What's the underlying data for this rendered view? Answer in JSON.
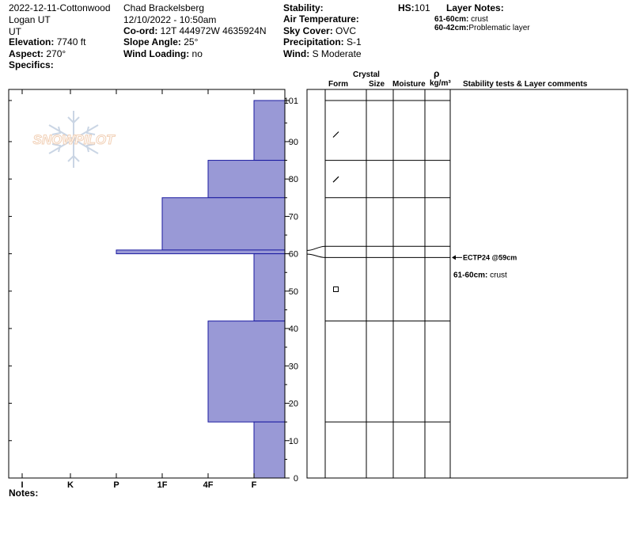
{
  "header": {
    "col1": [
      "2022-12-11-Cottonwood",
      "Logan UT",
      "UT"
    ],
    "elevation_label": "Elevation:",
    "elevation_value": "7740 ft",
    "aspect_label": "Aspect:",
    "aspect_value": "270°",
    "specifics_label": "Specifics:",
    "observer": "Chad Brackelsberg",
    "datetime": "12/10/2022 - 10:50am",
    "coord_label": "Co-ord:",
    "coord_value": "12T 444972W 4635924N",
    "slope_label": "Slope Angle:",
    "slope_value": "25°",
    "wind_loading_label": "Wind Loading:",
    "wind_loading_value": "no",
    "stability_label": "Stability:",
    "air_temp_label": "Air Temperature:",
    "sky_label": "Sky Cover:",
    "sky_value": "OVC",
    "precip_label": "Precipitation:",
    "precip_value": "S-1",
    "wind_label": "Wind:",
    "wind_value": "S Moderate",
    "hs_label": "HS:",
    "hs_value": "101",
    "layer_notes_label": "Layer Notes:",
    "layer_notes": [
      {
        "range": "61-60cm:",
        "text": "crust"
      },
      {
        "range": "60-42cm:",
        "text": "Problematic layer"
      }
    ]
  },
  "logo": {
    "text": "SNOWPILOT"
  },
  "columns": {
    "crystal": "Crystal",
    "form": "Form",
    "size": "Size",
    "moisture": "Moisture",
    "rho": "ρ",
    "density_unit": "kg/m³",
    "comments": "Stability tests & Layer comments"
  },
  "notes_label": "Notes:",
  "chart_data": {
    "type": "bar",
    "orientation": "horizontal",
    "y_axis": {
      "range": [
        0,
        101
      ],
      "ticks": [
        0,
        10,
        20,
        30,
        40,
        50,
        60,
        70,
        80,
        90,
        101
      ]
    },
    "x_axis": {
      "categories": [
        "I",
        "K",
        "P",
        "1F",
        "4F",
        "F"
      ]
    },
    "hardness_layers": [
      {
        "top": 101,
        "bottom": 85,
        "hardness": "F"
      },
      {
        "top": 85,
        "bottom": 75,
        "hardness": "4F"
      },
      {
        "top": 75,
        "bottom": 61,
        "hardness": "1F"
      },
      {
        "top": 61,
        "bottom": 60,
        "hardness": "P"
      },
      {
        "top": 60,
        "bottom": 42,
        "hardness": "F"
      },
      {
        "top": 42,
        "bottom": 15,
        "hardness": "4F"
      },
      {
        "top": 15,
        "bottom": 0,
        "hardness": "F"
      }
    ],
    "layer_boundaries": [
      101,
      85,
      75,
      62,
      59,
      42,
      15,
      0
    ],
    "grain_symbols": [
      {
        "depth": 92,
        "symbol": "/"
      },
      {
        "depth": 80,
        "symbol": "/"
      },
      {
        "depth": 50.5,
        "symbol": "□"
      }
    ],
    "test_results": [
      {
        "depth": 59,
        "text": "ECTP24 @59cm"
      }
    ],
    "layer_comments": [
      {
        "depth": 54.5,
        "range": "61-60cm:",
        "text": "crust"
      }
    ],
    "colors": {
      "bar_fill": "#9999d6",
      "bar_stroke": "#1a1aa0"
    }
  }
}
